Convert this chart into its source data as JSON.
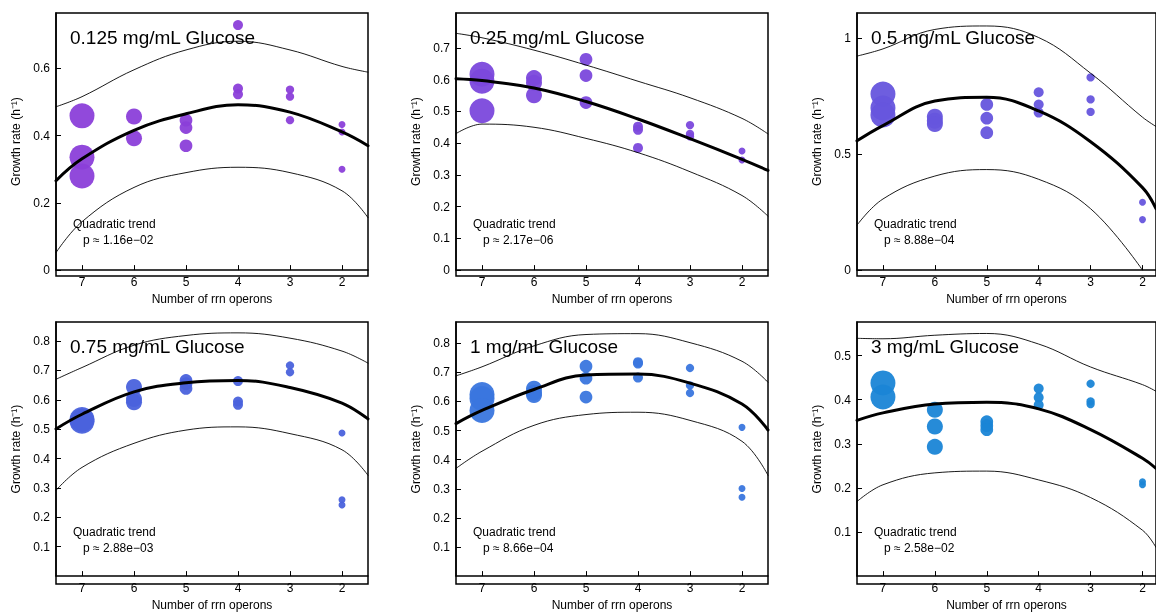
{
  "chart_data": [
    {
      "type": "bubble",
      "title": "0.125 mg/mL Glucose",
      "xlabel": "Number of rrn operons",
      "ylabel": "Growth rate (h⁻¹)",
      "annotations": [
        "Quadratic trend",
        "p ≈ 1.16e−02"
      ],
      "xlim": [
        7.5,
        1.5
      ],
      "xticks": [
        7,
        6,
        5,
        4,
        3,
        2
      ],
      "ylim": [
        0,
        0.765
      ],
      "yticks": [
        0,
        0.2,
        0.4,
        0.6
      ],
      "series": [
        {
          "color": "#8b3fd9",
          "x": [
            7,
            7,
            7,
            6,
            6,
            5,
            5,
            5,
            4,
            4,
            4,
            3,
            3,
            3,
            2,
            2,
            2
          ],
          "values": [
            0.459,
            0.336,
            0.28,
            0.457,
            0.392,
            0.446,
            0.424,
            0.37,
            0.729,
            0.54,
            0.523,
            0.537,
            0.516,
            0.446,
            0.433,
            0.411,
            0.3
          ],
          "sizes": [
            1,
            1,
            1,
            0.41,
            0.41,
            0.26,
            0.26,
            0.26,
            0.16,
            0.16,
            0.16,
            0.11,
            0.11,
            0.11,
            0.078,
            0.078,
            0.078
          ]
        },
        {
          "type": "line",
          "color": "#000000",
          "x": [
            7.5,
            7,
            6,
            5,
            4,
            3,
            2,
            1.5
          ],
          "values": [
            0.266,
            0.331,
            0.416,
            0.465,
            0.492,
            0.47,
            0.411,
            0.37
          ]
        },
        {
          "type": "line",
          "color": "#000000",
          "line_style": "solid",
          "x": [
            7.5,
            7,
            6,
            5,
            4,
            3,
            2,
            1.5
          ],
          "values": [
            0.052,
            0.144,
            0.246,
            0.29,
            0.306,
            0.29,
            0.236,
            0.156
          ]
        },
        {
          "type": "line",
          "color": "#000000",
          "line_style": "solid",
          "x": [
            7.5,
            7,
            6,
            5,
            4,
            3,
            2,
            1.5
          ],
          "values": [
            0.486,
            0.516,
            0.596,
            0.655,
            0.681,
            0.655,
            0.606,
            0.589
          ]
        }
      ]
    },
    {
      "type": "bubble",
      "title": "0.25 mg/mL Glucose",
      "xlabel": "Number of rrn operons",
      "ylabel": "Growth rate (h⁻¹)",
      "annotations": [
        "Quadratic trend",
        "p ≈ 2.17e−06"
      ],
      "xlim": [
        7.5,
        1.5
      ],
      "xticks": [
        7,
        6,
        5,
        4,
        3,
        2
      ],
      "ylim": [
        0,
        0.81
      ],
      "yticks": [
        0,
        0.1,
        0.2,
        0.3,
        0.4,
        0.5,
        0.6,
        0.7
      ],
      "series": [
        {
          "color": "#7b48dc",
          "x": [
            7,
            7,
            7,
            6,
            6,
            6,
            5,
            5,
            5,
            4,
            4,
            4,
            3,
            3,
            3,
            2,
            2
          ],
          "values": [
            0.617,
            0.595,
            0.502,
            0.605,
            0.59,
            0.551,
            0.664,
            0.613,
            0.528,
            0.452,
            0.442,
            0.385,
            0.457,
            0.429,
            0.421,
            0.375,
            0.347
          ],
          "sizes": [
            1,
            1,
            1,
            0.41,
            0.41,
            0.41,
            0.26,
            0.26,
            0.26,
            0.16,
            0.16,
            0.16,
            0.11,
            0.11,
            0.11,
            0.078,
            0.078
          ]
        },
        {
          "type": "line",
          "color": "#000000",
          "x": [
            7.5,
            7,
            6,
            5,
            4,
            3,
            2,
            1.5
          ],
          "values": [
            0.603,
            0.597,
            0.574,
            0.531,
            0.476,
            0.414,
            0.349,
            0.314
          ]
        },
        {
          "type": "line",
          "color": "#000000",
          "line_style": "solid",
          "x": [
            7.5,
            7,
            6,
            5,
            4,
            3,
            2,
            1.5
          ],
          "values": [
            0.43,
            0.46,
            0.45,
            0.415,
            0.37,
            0.31,
            0.235,
            0.17
          ]
        },
        {
          "type": "line",
          "color": "#000000",
          "line_style": "solid",
          "x": [
            7.5,
            7,
            6,
            5,
            4,
            3,
            2,
            1.5
          ],
          "values": [
            0.746,
            0.732,
            0.693,
            0.646,
            0.595,
            0.543,
            0.478,
            0.429
          ]
        }
      ]
    },
    {
      "type": "bubble",
      "title": "0.5 mg/mL Glucose",
      "xlabel": "Number of rrn operons",
      "ylabel": "Growth rate (h⁻¹)",
      "annotations": [
        "Quadratic trend",
        "p ≈ 8.88e−04"
      ],
      "xlim": [
        7.5,
        1.74
      ],
      "xticks": [
        7,
        6,
        5,
        4,
        3,
        2
      ],
      "ylim": [
        0,
        1.11
      ],
      "yticks": [
        0,
        0.5,
        1
      ],
      "series": [
        {
          "color": "#6655dd",
          "x": [
            7,
            7,
            7,
            6,
            6,
            6,
            5,
            5,
            5,
            4,
            4,
            4,
            3,
            3,
            3,
            2,
            2
          ],
          "values": [
            0.76,
            0.7,
            0.67,
            0.662,
            0.645,
            0.631,
            0.715,
            0.656,
            0.593,
            0.768,
            0.715,
            0.68,
            0.832,
            0.737,
            0.683,
            0.293,
            0.218
          ],
          "sizes": [
            1,
            1,
            1,
            0.41,
            0.41,
            0.41,
            0.26,
            0.26,
            0.26,
            0.16,
            0.16,
            0.16,
            0.11,
            0.11,
            0.11,
            0.078,
            0.078
          ]
        },
        {
          "type": "line",
          "color": "#000000",
          "x": [
            7.5,
            7,
            6,
            5,
            4,
            3,
            2,
            1.74
          ],
          "values": [
            0.558,
            0.624,
            0.73,
            0.746,
            0.687,
            0.554,
            0.356,
            0.265
          ]
        },
        {
          "type": "line",
          "color": "#000000",
          "line_style": "solid",
          "x": [
            7.5,
            7,
            6,
            5,
            4,
            3,
            2
          ],
          "values": [
            0.194,
            0.307,
            0.406,
            0.434,
            0.392,
            0.265,
            0
          ]
        },
        {
          "type": "line",
          "color": "#000000",
          "line_style": "solid",
          "x": [
            7.5,
            7,
            6,
            5,
            4,
            3,
            2,
            1.74
          ],
          "values": [
            0.924,
            0.955,
            1.039,
            1.054,
            1.004,
            0.85,
            0.66,
            0.62
          ]
        }
      ]
    },
    {
      "type": "bubble",
      "title": "0.75 mg/mL Glucose",
      "xlabel": "Number of rrn operons",
      "ylabel": "Growth rate (h⁻¹)",
      "annotations": [
        "Quadratic trend",
        "p ≈ 2.88e−03"
      ],
      "xlim": [
        7.5,
        1.5
      ],
      "xticks": [
        7,
        6,
        5,
        4,
        3,
        2
      ],
      "ylim": [
        0,
        0.865
      ],
      "yticks": [
        0.1,
        0.2,
        0.3,
        0.4,
        0.5,
        0.6,
        0.7,
        0.8
      ],
      "series": [
        {
          "color": "#4a62dc",
          "x": [
            7,
            7,
            6,
            6,
            6,
            5,
            5,
            5,
            4,
            4,
            4,
            3,
            3,
            2,
            2,
            2
          ],
          "values": [
            0.533,
            0.527,
            0.644,
            0.603,
            0.592,
            0.666,
            0.655,
            0.639,
            0.664,
            0.594,
            0.583,
            0.717,
            0.694,
            0.487,
            0.26,
            0.242
          ],
          "sizes": [
            1,
            1,
            0.41,
            0.41,
            0.41,
            0.26,
            0.26,
            0.26,
            0.16,
            0.16,
            0.16,
            0.11,
            0.11,
            0.078,
            0.078,
            0.078
          ]
        },
        {
          "type": "line",
          "color": "#000000",
          "x": [
            7.5,
            7,
            6,
            5,
            4,
            3,
            2,
            1.5
          ],
          "values": [
            0.501,
            0.551,
            0.627,
            0.658,
            0.666,
            0.642,
            0.589,
            0.535
          ]
        },
        {
          "type": "line",
          "color": "#000000",
          "line_style": "solid",
          "x": [
            7.5,
            7,
            6,
            5,
            4,
            3,
            2,
            1.5
          ],
          "values": [
            0.292,
            0.37,
            0.452,
            0.497,
            0.508,
            0.485,
            0.43,
            0.343
          ]
        },
        {
          "type": "line",
          "color": "#000000",
          "line_style": "solid",
          "x": [
            7.5,
            7,
            6,
            5,
            4,
            3,
            2,
            1.5
          ],
          "values": [
            0.67,
            0.71,
            0.786,
            0.819,
            0.828,
            0.81,
            0.766,
            0.725
          ]
        }
      ]
    },
    {
      "type": "bubble",
      "title": "1 mg/mL Glucose",
      "xlabel": "Number of rrn operons",
      "ylabel": "Growth rate (h⁻¹)",
      "annotations": [
        "Quadratic trend",
        "p ≈ 8.66e−04"
      ],
      "xlim": [
        7.5,
        1.5
      ],
      "xticks": [
        7,
        6,
        5,
        4,
        3,
        2
      ],
      "ylim": [
        0,
        0.873
      ],
      "yticks": [
        0.1,
        0.2,
        0.3,
        0.4,
        0.5,
        0.6,
        0.7,
        0.8
      ],
      "series": [
        {
          "color": "#3a76de",
          "x": [
            7,
            7,
            7,
            6,
            6,
            6,
            5,
            5,
            5,
            4,
            4,
            4,
            3,
            3,
            3,
            2,
            2,
            2
          ],
          "values": [
            0.624,
            0.61,
            0.569,
            0.644,
            0.63,
            0.622,
            0.721,
            0.68,
            0.615,
            0.735,
            0.73,
            0.682,
            0.715,
            0.655,
            0.629,
            0.511,
            0.301,
            0.271
          ],
          "sizes": [
            1,
            1,
            1,
            0.41,
            0.41,
            0.41,
            0.26,
            0.26,
            0.26,
            0.16,
            0.16,
            0.16,
            0.11,
            0.11,
            0.11,
            0.078,
            0.078,
            0.078
          ]
        },
        {
          "type": "line",
          "color": "#000000",
          "x": [
            7.5,
            7,
            6,
            5,
            4,
            3,
            2,
            1.5
          ],
          "values": [
            0.524,
            0.569,
            0.641,
            0.691,
            0.694,
            0.663,
            0.591,
            0.502
          ]
        },
        {
          "type": "line",
          "color": "#000000",
          "line_style": "solid",
          "x": [
            7.5,
            7,
            6,
            5,
            4,
            3,
            2,
            1.5
          ],
          "values": [
            0.37,
            0.429,
            0.518,
            0.555,
            0.563,
            0.535,
            0.463,
            0.346
          ]
        },
        {
          "type": "line",
          "color": "#000000",
          "line_style": "solid",
          "x": [
            7.5,
            7,
            6,
            5,
            4,
            3,
            2,
            1.5
          ],
          "values": [
            0.688,
            0.719,
            0.791,
            0.83,
            0.833,
            0.802,
            0.738,
            0.666
          ]
        }
      ]
    },
    {
      "type": "bubble",
      "title": "3 mg/mL Glucose",
      "xlabel": "Number of rrn operons",
      "ylabel": "Growth rate (h⁻¹)",
      "annotations": [
        "Quadratic trend",
        "p ≈ 2.58e−02"
      ],
      "xlim": [
        7.5,
        1.74
      ],
      "xticks": [
        7,
        6,
        5,
        4,
        3,
        2
      ],
      "ylim": [
        0,
        0.576
      ],
      "yticks": [
        0.1,
        0.2,
        0.3,
        0.4,
        0.5
      ],
      "series": [
        {
          "color": "#1a85d6",
          "x": [
            7,
            7,
            6,
            6,
            6,
            5,
            5,
            5,
            4,
            4,
            4,
            3,
            3,
            3,
            2,
            2
          ],
          "values": [
            0.438,
            0.406,
            0.377,
            0.339,
            0.293,
            0.35,
            0.341,
            0.332,
            0.425,
            0.405,
            0.388,
            0.436,
            0.396,
            0.39,
            0.214,
            0.207
          ],
          "sizes": [
            1,
            1,
            0.41,
            0.41,
            0.41,
            0.26,
            0.26,
            0.26,
            0.16,
            0.16,
            0.16,
            0.11,
            0.11,
            0.11,
            0.078,
            0.078
          ]
        },
        {
          "type": "line",
          "color": "#000000",
          "x": [
            7.5,
            7,
            6,
            5,
            4,
            3,
            2,
            1.74
          ],
          "values": [
            0.353,
            0.37,
            0.39,
            0.394,
            0.379,
            0.332,
            0.267,
            0.244
          ]
        },
        {
          "type": "line",
          "color": "#000000",
          "line_style": "solid",
          "x": [
            7.5,
            7,
            6,
            5,
            4,
            3,
            2,
            1.74
          ],
          "values": [
            0.169,
            0.207,
            0.234,
            0.238,
            0.218,
            0.178,
            0.104,
            0.065
          ]
        },
        {
          "type": "line",
          "color": "#000000",
          "line_style": "solid",
          "x": [
            7.5,
            7,
            6,
            5,
            4,
            3,
            2,
            1.74
          ],
          "values": [
            0.539,
            0.538,
            0.546,
            0.55,
            0.526,
            0.474,
            0.434,
            0.419
          ]
        }
      ]
    }
  ]
}
